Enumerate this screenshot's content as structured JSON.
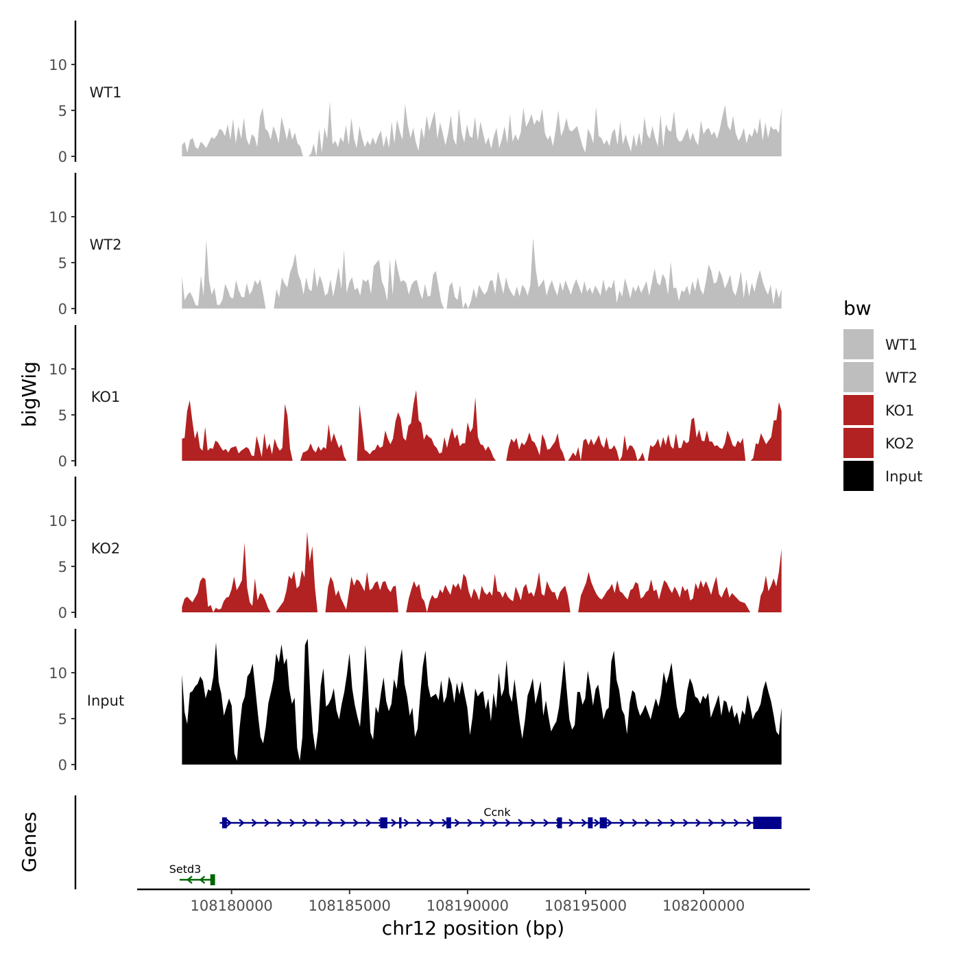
{
  "chart_data": {
    "type": "area",
    "title": "",
    "xlabel": "chr12 position (bp)",
    "ylabel": "bigWig",
    "genes_label": "Genes",
    "xlim": [
      108176000,
      108204500
    ],
    "data_range": [
      108177900,
      108203300
    ],
    "ylim": [
      0,
      15
    ],
    "y_ticks": [
      0,
      5,
      10
    ],
    "x_ticks": [
      108180000,
      108185000,
      108190000,
      108195000,
      108200000
    ],
    "x_tick_labels": [
      "108180000",
      "108185000",
      "108190000",
      "108195000",
      "108200000"
    ],
    "legend": {
      "title": "bw",
      "position": "right",
      "entries": [
        {
          "label": "WT1",
          "color": "#bebebe"
        },
        {
          "label": "WT2",
          "color": "#bebebe"
        },
        {
          "label": "KO1",
          "color": "#b22222"
        },
        {
          "label": "KO2",
          "color": "#b22222"
        },
        {
          "label": "Input",
          "color": "#000000"
        }
      ]
    },
    "series": [
      {
        "name": "WT1",
        "color": "#bebebe",
        "values": [
          1.2,
          1.6,
          0.4,
          1.8,
          2.0,
          1.0,
          0.8,
          1.6,
          1.3,
          0.9,
          1.5,
          2.1,
          1.9,
          2.3,
          3.0,
          2.8,
          2.2,
          3.5,
          1.8,
          4.1,
          1.4,
          3.3,
          1.9,
          4.2,
          1.9,
          1.2,
          2.4,
          2.1,
          1.0,
          4.3,
          5.3,
          3.0,
          2.7,
          1.8,
          3.3,
          2.5,
          1.4,
          4.3,
          3.1,
          1.8,
          3.2,
          1.8,
          2.6,
          1.4,
          1.1,
          0,
          0,
          0,
          0.3,
          1.4,
          0,
          3.0,
          0.4,
          3.1,
          1.9,
          6.0,
          1.3,
          1.7,
          1.0,
          2.1,
          1.5,
          3.4,
          1.2,
          4.2,
          1.9,
          0.9,
          3.3,
          2.0,
          1.0,
          1.7,
          1.2,
          2.1,
          1.3,
          2.2,
          2.8,
          1.0,
          2.3,
          0.9,
          3.8,
          1.4,
          4.0,
          2.7,
          1.8,
          5.7,
          3.4,
          2.0,
          3.1,
          1.5,
          0.6,
          3.2,
          1.9,
          4.4,
          2.8,
          3.9,
          4.9,
          1.9,
          3.7,
          2.5,
          1.2,
          2.5,
          4.5,
          1.9,
          1.2,
          5.2,
          2.6,
          1.5,
          3.5,
          2.2,
          2.0,
          4.3,
          1.7,
          3.8,
          2.5,
          1.3,
          2.1,
          0.8,
          2.2,
          3.1,
          0.9,
          1.9,
          3.3,
          1.4,
          4.6,
          1.6,
          2.4,
          1.7,
          2.6,
          5.3,
          3.2,
          3.8,
          4.6,
          3.4,
          4.0,
          3.7,
          5.2,
          2.5,
          1.8,
          2.3,
          1.1,
          2.9,
          5.0,
          2.2,
          2.9,
          4.2,
          2.9,
          2.7,
          3.0,
          3.3,
          2.2,
          1.1,
          0.4,
          3.0,
          2.4,
          1.4,
          5.4,
          2.2,
          2.0,
          1.3,
          1.8,
          1.1,
          2.6,
          3.0,
          1.2,
          3.8,
          1.3,
          2.4,
          1.4,
          0.5,
          2.4,
          1.0,
          2.6,
          1.1,
          4.3,
          2.4,
          1.9,
          3.3,
          2.0,
          1.1,
          4.6,
          1.0,
          3.5,
          2.8,
          2.7,
          4.9,
          2.1,
          1.6,
          1.7,
          2.4,
          3.1,
          1.7,
          2.6,
          1.7,
          1.2,
          3.9,
          2.4,
          2.9,
          3.1,
          2.3,
          2.7,
          1.9,
          2.9,
          4.3,
          5.6,
          3.3,
          2.8,
          4.4,
          2.5,
          1.7,
          2.2,
          3.1,
          1.4,
          2.5,
          2.1,
          3.1,
          2.4,
          4.2,
          1.7,
          3.7,
          2.0,
          3.3,
          2.9,
          3.0,
          2.5,
          5.3
        ]
      },
      {
        "name": "WT2",
        "color": "#bebebe",
        "values": [
          3.5,
          0.9,
          1.5,
          1.8,
          1.2,
          0.4,
          0.3,
          3.6,
          1.4,
          7.5,
          3.1,
          1.5,
          2.3,
          0.4,
          0.4,
          1.0,
          2.7,
          2.0,
          1.2,
          1.1,
          3.1,
          2.0,
          1.3,
          1.2,
          2.8,
          1.5,
          2.0,
          3.1,
          2.6,
          3.2,
          1.7,
          0,
          0,
          0,
          0,
          2.1,
          1.2,
          3.4,
          2.7,
          2.3,
          3.9,
          4.7,
          6.0,
          3.8,
          3.0,
          1.5,
          3.4,
          2.1,
          1.9,
          4.5,
          2.3,
          3.6,
          2.8,
          1.4,
          1.7,
          3.2,
          1.3,
          2.8,
          4.5,
          2.1,
          6.4,
          1.7,
          2.9,
          3.4,
          2.0,
          2.3,
          1.4,
          3.2,
          2.9,
          3.2,
          1.6,
          4.6,
          5.0,
          5.3,
          3.0,
          2.2,
          0.8,
          5.4,
          1.5,
          5.5,
          4.1,
          2.9,
          3.1,
          2.8,
          1.5,
          2.6,
          3.0,
          3.1,
          1.8,
          1.0,
          2.7,
          1.3,
          1.4,
          3.7,
          4.1,
          2.4,
          0.7,
          0,
          0,
          2.4,
          2.9,
          1.3,
          0.9,
          2.6,
          0,
          0.7,
          0,
          0.8,
          2.2,
          1.1,
          2.6,
          2.0,
          1.5,
          1.9,
          3.0,
          3.1,
          1.6,
          4.1,
          2.8,
          1.6,
          3.4,
          2.3,
          1.7,
          1.3,
          2.4,
          1.3,
          2.6,
          2.2,
          1.4,
          2.6,
          7.7,
          4.3,
          2.3,
          2.7,
          3.2,
          1.4,
          2.4,
          3.1,
          2.1,
          1.4,
          2.9,
          1.9,
          3.1,
          2.3,
          1.5,
          2.5,
          3.2,
          2.4,
          1.6,
          3.0,
          1.8,
          2.3,
          1.6,
          2.5,
          2.0,
          1.4,
          3.2,
          1.8,
          2.4,
          2.2,
          3.2,
          0.6,
          2.0,
          1.3,
          3.3,
          2.3,
          1.1,
          2.4,
          1.8,
          2.6,
          1.7,
          2.3,
          3.0,
          1.4,
          2.8,
          4.4,
          2.8,
          2.5,
          3.8,
          3.2,
          1.5,
          5.1,
          2.2,
          2.3,
          0.8,
          2.0,
          1.8,
          2.5,
          1.4,
          3.0,
          1.9,
          3.4,
          2.1,
          1.5,
          2.9,
          4.8,
          4.1,
          2.7,
          2.9,
          4.2,
          3.4,
          2.2,
          2.8,
          3.7,
          1.9,
          1.4,
          2.6,
          4.1,
          1.1,
          3.2,
          1.3,
          2.8,
          1.8,
          3.2,
          4.2,
          3.0,
          2.1,
          1.5,
          2.6,
          0.4,
          2.3,
          1.1,
          2.1
        ]
      },
      {
        "name": "KO1",
        "color": "#b22222",
        "values": [
          2.4,
          2.5,
          5.4,
          6.6,
          4.4,
          2.4,
          3.3,
          1.4,
          1.1,
          3.7,
          1.1,
          1.4,
          1.3,
          2.2,
          2.0,
          1.5,
          1.1,
          1.3,
          0.9,
          1.4,
          1.5,
          1.6,
          0.8,
          1.1,
          1.3,
          1.5,
          1.3,
          0.6,
          0.5,
          2.7,
          1.6,
          0.4,
          3.0,
          1.2,
          1.9,
          0.7,
          2.4,
          1.6,
          1.1,
          1.4,
          6.2,
          4.9,
          1.3,
          0,
          0,
          0,
          0,
          0.9,
          1.0,
          1.2,
          1.9,
          1.2,
          0.9,
          1.6,
          1.1,
          1.5,
          1.3,
          4.0,
          2.0,
          3.0,
          2.2,
          1.4,
          1.8,
          0.5,
          0,
          0,
          0,
          0,
          0,
          6.1,
          3.7,
          1.2,
          1.0,
          0.7,
          1.1,
          1.2,
          1.8,
          1.4,
          1.6,
          3.3,
          2.4,
          1.8,
          2.4,
          4.3,
          5.3,
          4.6,
          2.5,
          2.2,
          3.8,
          4.1,
          6.2,
          7.7,
          4.4,
          4.1,
          2.3,
          2.9,
          2.6,
          2.4,
          1.7,
          1.4,
          0.8,
          0.9,
          2.6,
          1.4,
          2.6,
          3.6,
          2.4,
          2.9,
          1.6,
          1.9,
          1.9,
          4.2,
          3.1,
          3.6,
          6.9,
          2.6,
          1.8,
          1.7,
          1.1,
          1.6,
          1.1,
          0.4,
          0,
          0,
          0,
          0,
          0,
          1.5,
          2.4,
          2.0,
          2.5,
          1.2,
          2.0,
          1.7,
          2.2,
          3.1,
          2.2,
          2.0,
          1.4,
          0.6,
          2.9,
          2.3,
          1.2,
          1.3,
          1.7,
          2.1,
          3.0,
          1.4,
          0.9,
          0,
          0,
          0.4,
          0.9,
          0.5,
          1.5,
          0,
          2.2,
          2.4,
          1.7,
          2.4,
          1.7,
          2.2,
          2.8,
          1.8,
          1.4,
          2.6,
          1.3,
          1.3,
          1.7,
          1.1,
          0,
          0.5,
          2.8,
          1.1,
          1.7,
          1.6,
          1.1,
          0,
          0.3,
          0.9,
          0,
          0,
          1.7,
          1.5,
          1.8,
          2.4,
          1.4,
          2.6,
          1.7,
          2.9,
          1.6,
          1.3,
          3.0,
          1.4,
          1.4,
          2.3,
          1.9,
          2.1,
          4.5,
          4.7,
          2.5,
          3.4,
          2.2,
          2.1,
          3.3,
          2.1,
          2.1,
          1.6,
          1.7,
          1.4,
          1.3,
          1.9,
          3.3,
          2.6,
          1.7,
          1.5,
          2.2,
          1.9,
          2.5,
          0,
          0,
          0,
          0.3,
          1.9,
          1.8,
          3.0,
          2.4,
          1.8,
          2.2,
          2.6,
          4.4,
          4.4,
          6.4,
          5.4
        ]
      },
      {
        "name": "KO2",
        "color": "#b22222",
        "values": [
          0.6,
          1.5,
          1.7,
          1.4,
          1.1,
          1.6,
          2.1,
          3.4,
          3.8,
          3.6,
          0.6,
          0.8,
          0,
          0.5,
          0.3,
          0.4,
          1.2,
          1.6,
          1.7,
          2.5,
          3.9,
          2.4,
          2.9,
          3.5,
          7.6,
          2.7,
          1.1,
          0.7,
          3.7,
          1.3,
          2.1,
          1.9,
          1.3,
          0.5,
          0,
          0,
          0,
          0.4,
          0.8,
          1.2,
          2.3,
          4.0,
          3.6,
          4.5,
          2.6,
          2.9,
          4.6,
          3.8,
          8.8,
          5.5,
          7.2,
          2.7,
          0,
          0,
          0,
          0,
          2.7,
          3.9,
          3.3,
          1.8,
          2.4,
          1.5,
          0.9,
          0.3,
          2.1,
          3.9,
          2.9,
          3.6,
          3.4,
          2.9,
          2.3,
          4.4,
          2.4,
          2.6,
          3.2,
          3.4,
          2.4,
          3.3,
          3.4,
          2.6,
          2.2,
          2.8,
          2.9,
          0,
          0,
          0,
          0,
          1.5,
          2.5,
          3.4,
          2.7,
          3.1,
          1.6,
          1.2,
          0,
          1.2,
          1.9,
          1.5,
          1.6,
          2.5,
          2.1,
          3.0,
          2.4,
          1.9,
          3.1,
          2.7,
          3.2,
          2.4,
          4.2,
          3.8,
          2.3,
          1.5,
          2.6,
          2.1,
          1.3,
          2.9,
          2.2,
          1.9,
          2.3,
          1.8,
          4.2,
          2.3,
          2.2,
          1.6,
          2.3,
          1.7,
          1.4,
          1.2,
          2.8,
          2.1,
          1.3,
          2.7,
          3.1,
          2.0,
          2.2,
          1.7,
          2.8,
          4.4,
          2.0,
          1.8,
          3.4,
          2.7,
          2.2,
          2.2,
          1.3,
          2.2,
          2.6,
          2.9,
          1.8,
          0,
          0,
          0,
          0,
          1.8,
          2.5,
          3.2,
          4.4,
          3.3,
          2.6,
          2.0,
          1.6,
          1.4,
          1.8,
          2.3,
          2.6,
          3.1,
          2.1,
          3.5,
          2.3,
          2.1,
          1.7,
          1.4,
          2.4,
          2.6,
          3.3,
          3.1,
          1.5,
          1.7,
          2.2,
          2.4,
          3.6,
          2.3,
          2.5,
          1.4,
          2.5,
          3.5,
          3.2,
          2.6,
          2.1,
          2.8,
          2.3,
          1.6,
          2.9,
          2.3,
          2.6,
          1.3,
          1.5,
          3.2,
          2.5,
          3.5,
          2.7,
          3.4,
          2.7,
          1.9,
          3.0,
          3.9,
          2.0,
          1.6,
          2.3,
          2.8,
          1.6,
          2.1,
          1.8,
          1.5,
          1.2,
          1.1,
          1.0,
          0.5,
          0,
          0,
          0,
          0,
          1.8,
          2.4,
          4.0,
          2.3,
          2.9,
          3.7,
          2.8,
          4.4,
          6.9
        ]
      },
      {
        "name": "Input",
        "color": "#000000",
        "values": [
          9.8,
          5.7,
          4.4,
          7.8,
          8.0,
          8.5,
          8.8,
          9.6,
          9.1,
          7.2,
          8.2,
          8.0,
          9.6,
          13.3,
          9.0,
          7.7,
          5.3,
          6.3,
          7.2,
          6.4,
          1.2,
          0.4,
          4.0,
          6.6,
          7.4,
          9.6,
          10.0,
          11.0,
          8.3,
          5.5,
          3.0,
          2.3,
          4.1,
          6.7,
          7.9,
          9.3,
          12.1,
          11.1,
          13.1,
          10.9,
          11.6,
          8.2,
          6.6,
          7.3,
          1.8,
          0.4,
          3.0,
          13.0,
          13.7,
          7.6,
          3.5,
          1.5,
          3.7,
          8.6,
          10.5,
          6.3,
          6.6,
          7.2,
          8.3,
          5.9,
          4.9,
          6.6,
          7.9,
          9.8,
          12.1,
          8.3,
          6.5,
          5.2,
          4.1,
          7.9,
          13.0,
          9.0,
          3.5,
          2.7,
          6.3,
          5.6,
          7.8,
          9.5,
          6.9,
          5.8,
          6.6,
          9.3,
          8.2,
          11.0,
          12.6,
          8.8,
          7.4,
          5.3,
          6.2,
          3.0,
          3.9,
          7.5,
          10.7,
          12.4,
          8.6,
          7.3,
          7.5,
          7.7,
          7.0,
          9.2,
          6.7,
          7.4,
          9.6,
          8.7,
          6.7,
          8.9,
          7.6,
          9.1,
          7.6,
          6.2,
          3.2,
          5.2,
          8.3,
          7.4,
          7.8,
          8.0,
          6.0,
          7.2,
          4.7,
          7.8,
          6.1,
          10.0,
          7.4,
          8.2,
          11.4,
          7.7,
          6.8,
          9.3,
          6.9,
          4.6,
          2.8,
          4.8,
          7.5,
          8.3,
          9.4,
          6.6,
          7.8,
          9.1,
          5.3,
          7.0,
          5.2,
          3.6,
          4.2,
          4.7,
          6.2,
          8.7,
          11.4,
          8.0,
          4.9,
          3.8,
          4.3,
          7.9,
          7.9,
          6.5,
          7.2,
          10.2,
          8.5,
          6.4,
          8.2,
          8.7,
          6.8,
          4.9,
          5.9,
          6.2,
          11.2,
          12.4,
          9.2,
          8.1,
          6.0,
          5.4,
          3.3,
          6.7,
          8.1,
          7.8,
          6.2,
          5.3,
          5.8,
          6.5,
          5.7,
          4.9,
          6.1,
          7.2,
          6.3,
          7.7,
          10.1,
          8.8,
          9.8,
          11.1,
          8.5,
          6.3,
          5.0,
          5.4,
          5.8,
          8.1,
          9.4,
          8.7,
          7.4,
          7.2,
          6.6,
          7.5,
          7.1,
          7.8,
          5.1,
          5.9,
          6.7,
          7.6,
          5.3,
          7.0,
          6.8,
          5.6,
          6.5,
          5.1,
          5.7,
          4.3,
          5.9,
          5.4,
          7.6,
          6.4,
          4.9,
          5.6,
          5.9,
          6.6,
          8.2,
          9.1,
          7.9,
          6.9,
          5.4,
          3.6,
          3.2,
          6.2
        ]
      }
    ],
    "genes": [
      {
        "name": "Ccnk",
        "strand": "+",
        "color": "#00008b",
        "start": 108179500,
        "end": 108203300,
        "exons": [
          [
            108179600,
            108179800
          ],
          [
            108186300,
            108186600
          ],
          [
            108187100,
            108187200
          ],
          [
            108189100,
            108189300
          ],
          [
            108193800,
            108194000
          ],
          [
            108195100,
            108195300
          ],
          [
            108195600,
            108195900
          ],
          [
            108202100,
            108203300
          ]
        ]
      },
      {
        "name": "Setd3",
        "strand": "-",
        "color": "#006400",
        "start": 108177800,
        "end": 108179300,
        "exons": [
          [
            108179100,
            108179300
          ]
        ]
      }
    ]
  }
}
